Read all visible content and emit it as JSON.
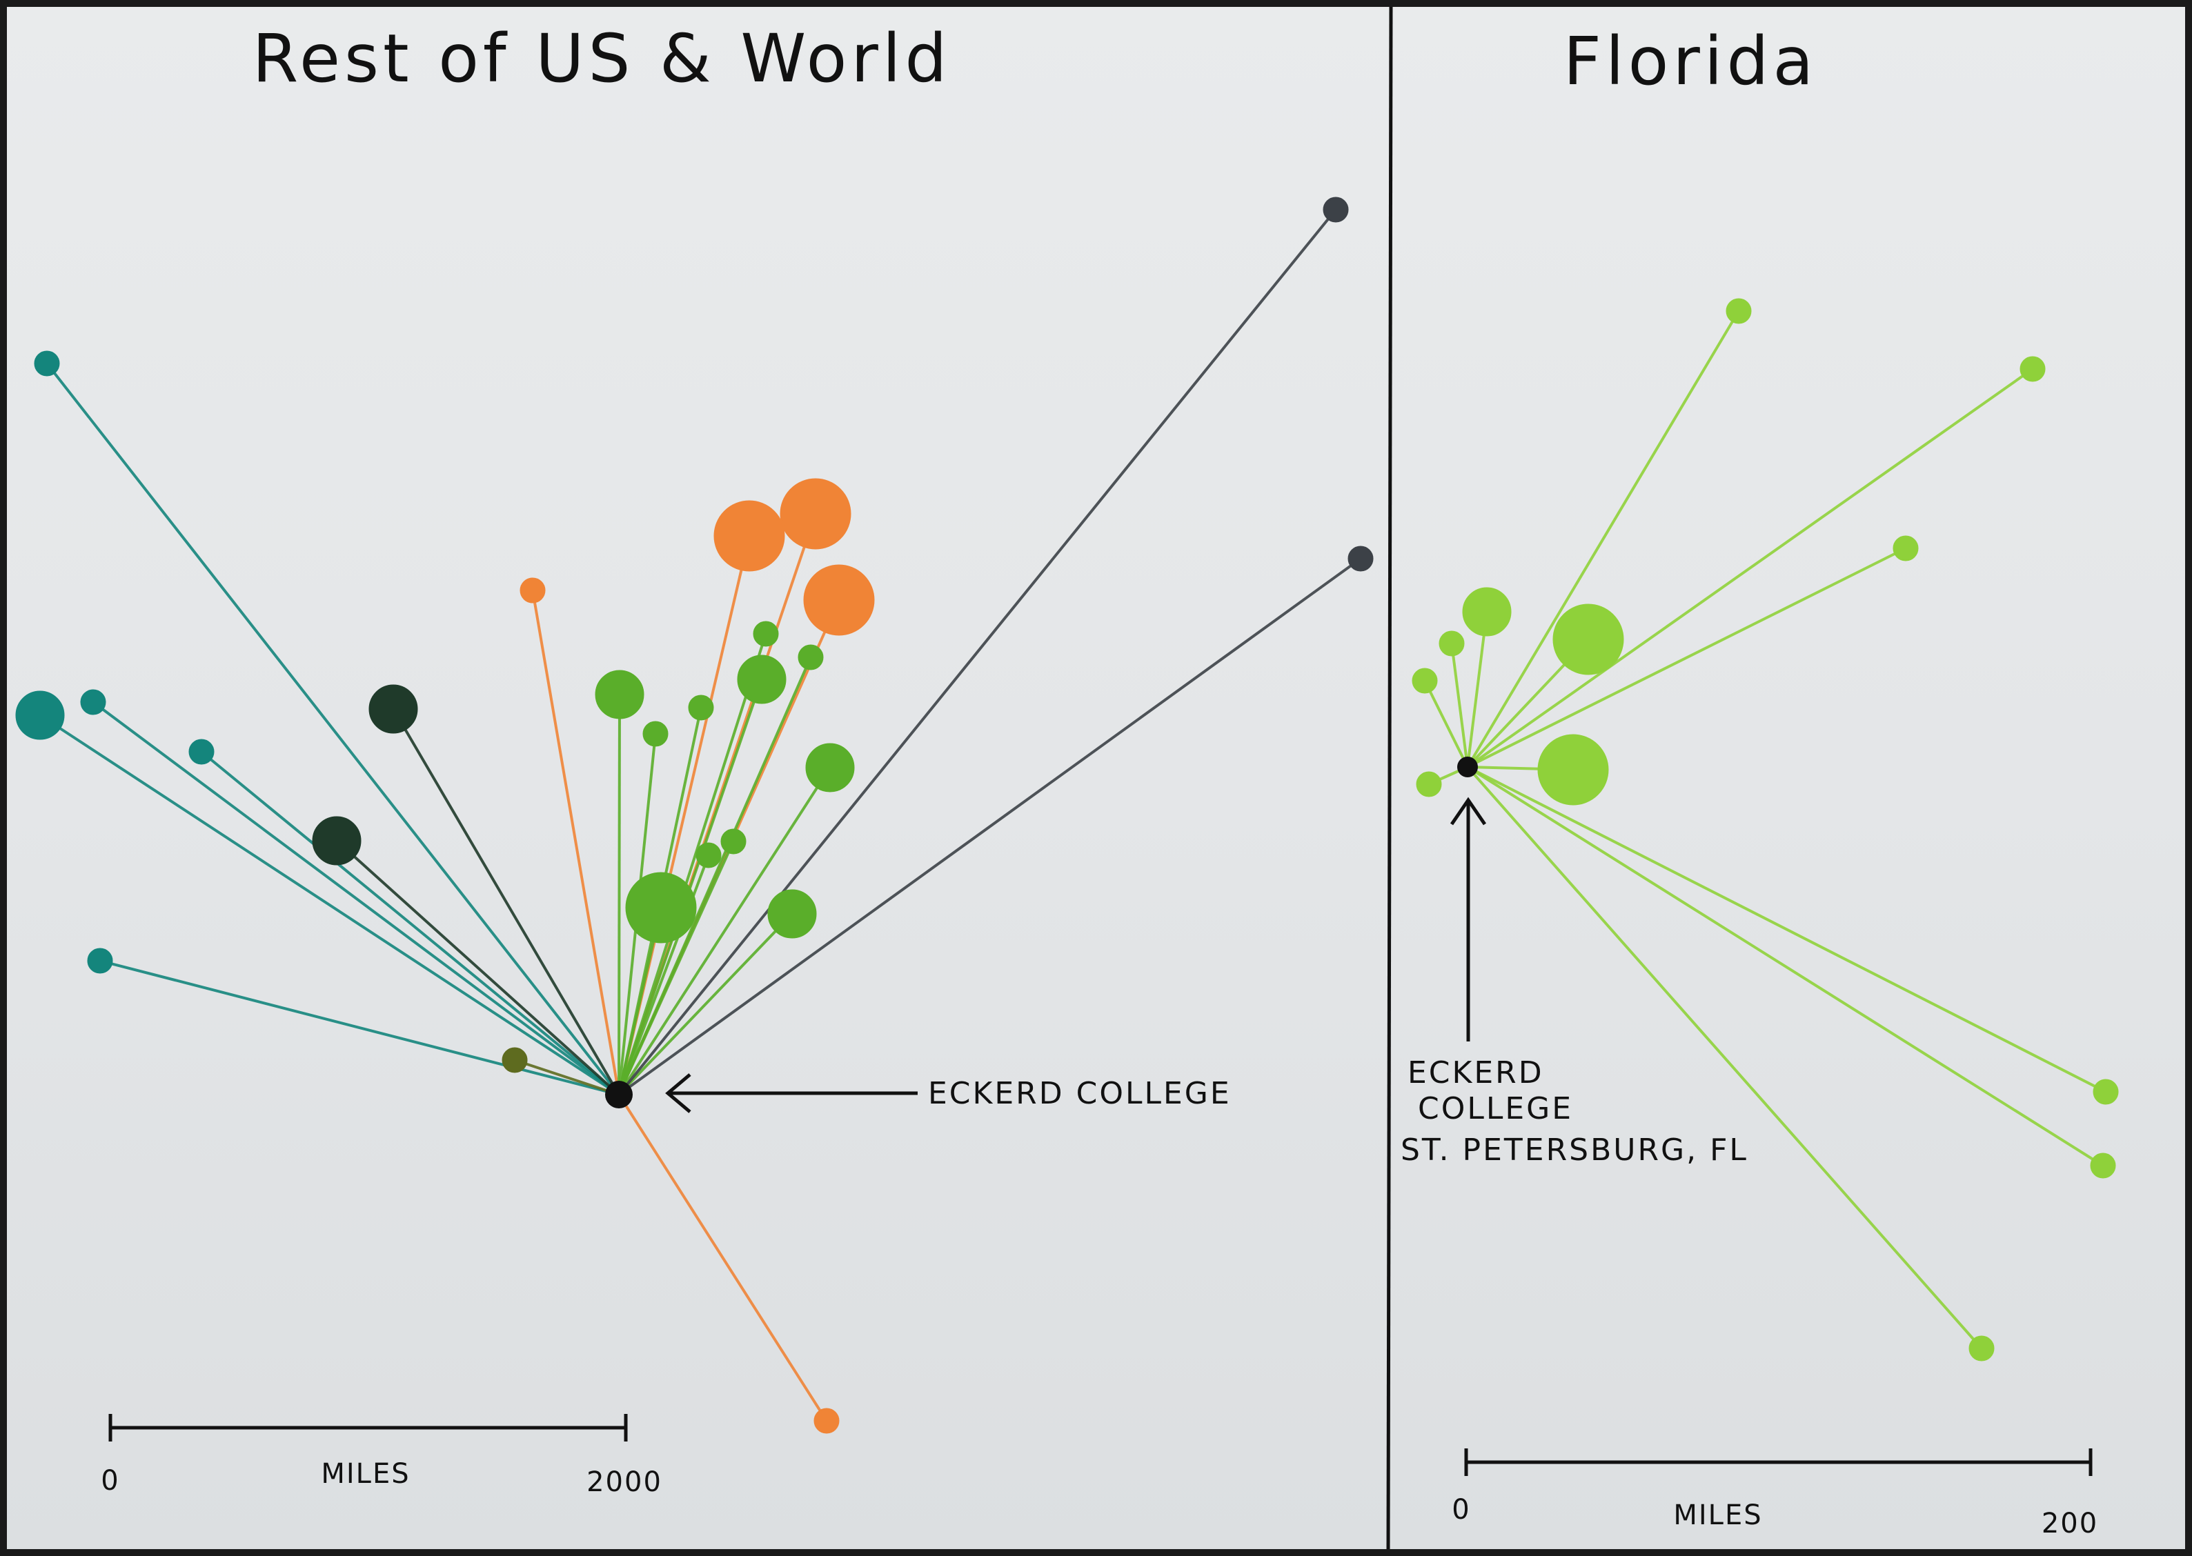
{
  "left_panel": {
    "title": "Rest of US & World",
    "origin_label": "ECKERD COLLEGE",
    "scale": {
      "min_label": "0",
      "unit_label": "MILES",
      "max_label": "2000"
    }
  },
  "right_panel": {
    "title": "Florida",
    "origin_label_line1": "ECKERD",
    "origin_label_line2": "COLLEGE",
    "origin_label_line3": "ST. PETERSBURG, FL",
    "scale": {
      "min_label": "0",
      "unit_label": "MILES",
      "max_label": "200"
    }
  },
  "colors": {
    "teal": "#14857c",
    "dark_green": "#1f3a2a",
    "olive": "#5e6b1f",
    "orange": "#f08436",
    "green": "#5aae2a",
    "charcoal": "#3c4147",
    "lime": "#8fd13a",
    "ink": "#111111"
  },
  "left_destinations": [
    {
      "color": "teal",
      "size": 1
    },
    {
      "color": "teal",
      "size": 2
    },
    {
      "color": "teal",
      "size": 1
    },
    {
      "color": "teal",
      "size": 1
    },
    {
      "color": "teal",
      "size": 1
    },
    {
      "color": "dark_green",
      "size": 2
    },
    {
      "color": "dark_green",
      "size": 2
    },
    {
      "color": "olive",
      "size": 1
    },
    {
      "color": "orange",
      "size": 1
    },
    {
      "color": "orange",
      "size": 3
    },
    {
      "color": "orange",
      "size": 3
    },
    {
      "color": "orange",
      "size": 3
    },
    {
      "color": "orange",
      "size": 1
    },
    {
      "color": "green",
      "size": 2
    },
    {
      "color": "green",
      "size": 1
    },
    {
      "color": "green",
      "size": 1
    },
    {
      "color": "green",
      "size": 1
    },
    {
      "color": "green",
      "size": 2
    },
    {
      "color": "green",
      "size": 1
    },
    {
      "color": "green",
      "size": 2
    },
    {
      "color": "green",
      "size": 1
    },
    {
      "color": "green",
      "size": 1
    },
    {
      "color": "green",
      "size": 3
    },
    {
      "color": "green",
      "size": 2
    },
    {
      "color": "charcoal",
      "size": 1
    },
    {
      "color": "charcoal",
      "size": 1
    }
  ],
  "right_destinations": [
    {
      "color": "lime",
      "size": 1
    },
    {
      "color": "lime",
      "size": 1
    },
    {
      "color": "lime",
      "size": 2
    },
    {
      "color": "lime",
      "size": 3
    },
    {
      "color": "lime",
      "size": 3
    },
    {
      "color": "lime",
      "size": 1
    },
    {
      "color": "lime",
      "size": 1
    },
    {
      "color": "lime",
      "size": 1
    },
    {
      "color": "lime",
      "size": 1
    },
    {
      "color": "lime",
      "size": 1
    },
    {
      "color": "lime",
      "size": 1
    },
    {
      "color": "lime",
      "size": 1
    }
  ]
}
